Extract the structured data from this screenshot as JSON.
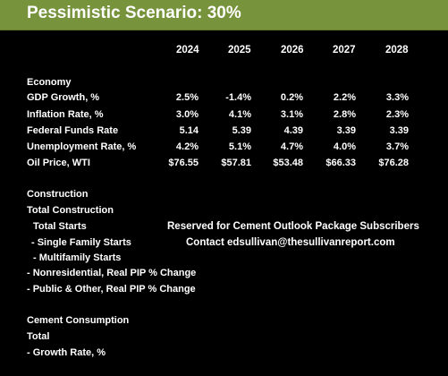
{
  "banner": {
    "title": "Pessimistic Scenario: 30%",
    "color": "#77933c"
  },
  "years": [
    "2024",
    "2025",
    "2026",
    "2027",
    "2028"
  ],
  "economy": {
    "heading": "Economy",
    "rows": [
      {
        "label": "GDP Growth, %",
        "values": [
          "2.5%",
          "-1.4%",
          "0.2%",
          "2.2%",
          "3.3%"
        ]
      },
      {
        "label": "Inflation Rate, %",
        "values": [
          "3.0%",
          "4.1%",
          "3.1%",
          "2.8%",
          "2.3%"
        ]
      },
      {
        "label": "Federal Funds Rate",
        "values": [
          "5.14",
          "5.39",
          "4.39",
          "3.39",
          "3.39"
        ]
      },
      {
        "label": "Unemployment Rate, %",
        "values": [
          "4.2%",
          "5.1%",
          "4.7%",
          "4.0%",
          "3.7%"
        ]
      },
      {
        "label": "Oil Price,  WTI",
        "values": [
          "$76.55",
          "$57.81",
          "$53.48",
          "$66.33",
          "$76.28"
        ]
      }
    ]
  },
  "construction": {
    "heading": "Construction",
    "items": [
      "Total Construction",
      "Total Starts",
      "- Single Family Starts",
      "- Multifamily Starts",
      "- Nonresidential, Real PIP % Change",
      "- Public & Other, Real PIP % Change"
    ]
  },
  "notice": {
    "line1": "Reserved for Cement Outlook Package Subscribers",
    "line2": "Contact edsullivan@thesullivanreport.com"
  },
  "cement": {
    "heading": "Cement Consumption",
    "items": [
      "Total",
      "- Growth Rate, %"
    ]
  }
}
